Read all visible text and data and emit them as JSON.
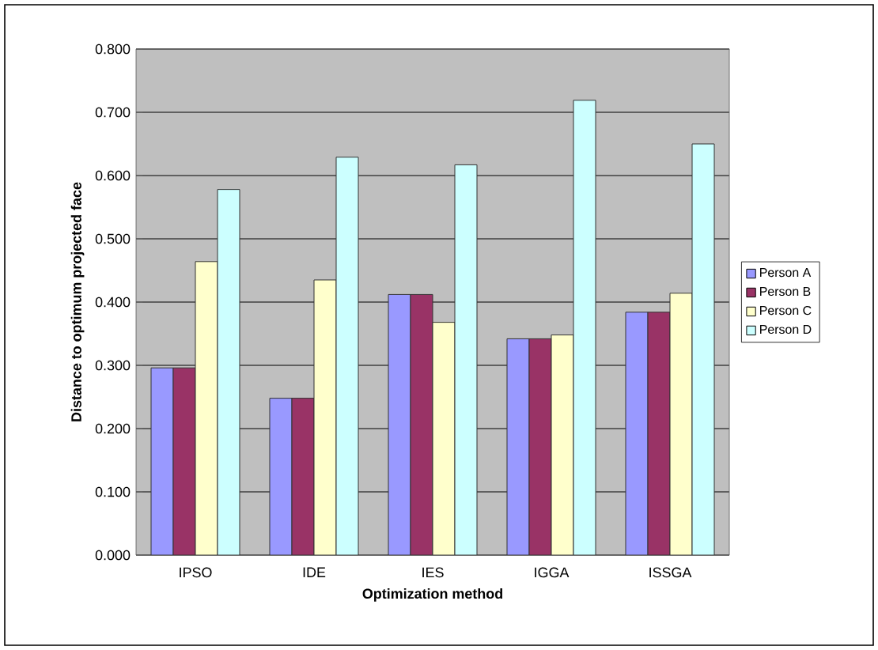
{
  "chart_data": {
    "type": "bar",
    "xlabel": "Optimization method",
    "ylabel": "Distance to optimum projected face",
    "categories": [
      "IPSO",
      "IDE",
      "IES",
      "IGGA",
      "ISSGA"
    ],
    "series": [
      {
        "name": "Person A",
        "color": "#9999ff",
        "values": [
          0.296,
          0.248,
          0.412,
          0.342,
          0.384
        ]
      },
      {
        "name": "Person B",
        "color": "#993366",
        "values": [
          0.296,
          0.248,
          0.412,
          0.342,
          0.384
        ]
      },
      {
        "name": "Person C",
        "color": "#ffffcc",
        "values": [
          0.464,
          0.435,
          0.368,
          0.348,
          0.414
        ]
      },
      {
        "name": "Person D",
        "color": "#ccffff",
        "values": [
          0.578,
          0.629,
          0.617,
          0.719,
          0.65
        ]
      }
    ],
    "ylim": [
      0,
      0.8
    ],
    "yticks": [
      {
        "value": 0,
        "label": "0.000"
      },
      {
        "value": 0.1,
        "label": "0.100"
      },
      {
        "value": 0.2,
        "label": "0.200"
      },
      {
        "value": 0.3,
        "label": "0.300"
      },
      {
        "value": 0.4,
        "label": "0.400"
      },
      {
        "value": 0.5,
        "label": "0.500"
      },
      {
        "value": 0.6,
        "label": "0.600"
      },
      {
        "value": 0.7,
        "label": "0.700"
      },
      {
        "value": 0.8,
        "label": "0.800"
      }
    ],
    "grid": "y",
    "legend": "right"
  }
}
